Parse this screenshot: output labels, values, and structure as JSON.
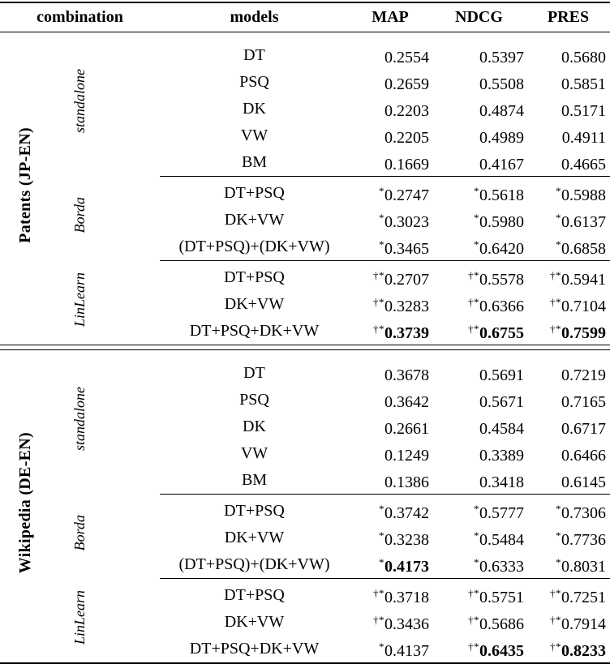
{
  "colors": {
    "text": "#000000",
    "background": "#ffffff"
  },
  "header": {
    "combination": "combination",
    "models": "models",
    "metrics": [
      "MAP",
      "NDCG",
      "PRES"
    ]
  },
  "sections": [
    {
      "label": "Patents (JP-EN)",
      "groups": [
        {
          "label": "standalone",
          "rows": [
            {
              "model": "DT",
              "values": [
                {
                  "p": "",
                  "v": "0.2554",
                  "b": false
                },
                {
                  "p": "",
                  "v": "0.5397",
                  "b": false
                },
                {
                  "p": "",
                  "v": "0.5680",
                  "b": false
                }
              ]
            },
            {
              "model": "PSQ",
              "values": [
                {
                  "p": "",
                  "v": "0.2659",
                  "b": false
                },
                {
                  "p": "",
                  "v": "0.5508",
                  "b": false
                },
                {
                  "p": "",
                  "v": "0.5851",
                  "b": false
                }
              ]
            },
            {
              "model": "DK",
              "values": [
                {
                  "p": "",
                  "v": "0.2203",
                  "b": false
                },
                {
                  "p": "",
                  "v": "0.4874",
                  "b": false
                },
                {
                  "p": "",
                  "v": "0.5171",
                  "b": false
                }
              ]
            },
            {
              "model": "VW",
              "values": [
                {
                  "p": "",
                  "v": "0.2205",
                  "b": false
                },
                {
                  "p": "",
                  "v": "0.4989",
                  "b": false
                },
                {
                  "p": "",
                  "v": "0.4911",
                  "b": false
                }
              ]
            },
            {
              "model": "BM",
              "values": [
                {
                  "p": "",
                  "v": "0.1669",
                  "b": false
                },
                {
                  "p": "",
                  "v": "0.4167",
                  "b": false
                },
                {
                  "p": "",
                  "v": "0.4665",
                  "b": false
                }
              ]
            }
          ]
        },
        {
          "label": "Borda",
          "rows": [
            {
              "model": "DT+PSQ",
              "values": [
                {
                  "p": "*",
                  "v": "0.2747",
                  "b": false
                },
                {
                  "p": "*",
                  "v": "0.5618",
                  "b": false
                },
                {
                  "p": "*",
                  "v": "0.5988",
                  "b": false
                }
              ]
            },
            {
              "model": "DK+VW",
              "values": [
                {
                  "p": "*",
                  "v": "0.3023",
                  "b": false
                },
                {
                  "p": "*",
                  "v": "0.5980",
                  "b": false
                },
                {
                  "p": "*",
                  "v": "0.6137",
                  "b": false
                }
              ]
            },
            {
              "model": "(DT+PSQ)+(DK+VW)",
              "values": [
                {
                  "p": "*",
                  "v": "0.3465",
                  "b": false
                },
                {
                  "p": "*",
                  "v": "0.6420",
                  "b": false
                },
                {
                  "p": "*",
                  "v": "0.6858",
                  "b": false
                }
              ]
            }
          ]
        },
        {
          "label": "LinLearn",
          "rows": [
            {
              "model": "DT+PSQ",
              "values": [
                {
                  "p": "†*",
                  "v": "0.2707",
                  "b": false
                },
                {
                  "p": "†*",
                  "v": "0.5578",
                  "b": false
                },
                {
                  "p": "†*",
                  "v": "0.5941",
                  "b": false
                }
              ]
            },
            {
              "model": "DK+VW",
              "values": [
                {
                  "p": "†*",
                  "v": "0.3283",
                  "b": false
                },
                {
                  "p": "†*",
                  "v": "0.6366",
                  "b": false
                },
                {
                  "p": "†*",
                  "v": "0.7104",
                  "b": false
                }
              ]
            },
            {
              "model": "DT+PSQ+DK+VW",
              "values": [
                {
                  "p": "†*",
                  "v": "0.3739",
                  "b": true
                },
                {
                  "p": "†*",
                  "v": "0.6755",
                  "b": true
                },
                {
                  "p": "†*",
                  "v": "0.7599",
                  "b": true
                }
              ]
            }
          ]
        }
      ]
    },
    {
      "label": "Wikipedia (DE-EN)",
      "groups": [
        {
          "label": "standalone",
          "rows": [
            {
              "model": "DT",
              "values": [
                {
                  "p": "",
                  "v": "0.3678",
                  "b": false
                },
                {
                  "p": "",
                  "v": "0.5691",
                  "b": false
                },
                {
                  "p": "",
                  "v": "0.7219",
                  "b": false
                }
              ]
            },
            {
              "model": "PSQ",
              "values": [
                {
                  "p": "",
                  "v": "0.3642",
                  "b": false
                },
                {
                  "p": "",
                  "v": "0.5671",
                  "b": false
                },
                {
                  "p": "",
                  "v": "0.7165",
                  "b": false
                }
              ]
            },
            {
              "model": "DK",
              "values": [
                {
                  "p": "",
                  "v": "0.2661",
                  "b": false
                },
                {
                  "p": "",
                  "v": "0.4584",
                  "b": false
                },
                {
                  "p": "",
                  "v": "0.6717",
                  "b": false
                }
              ]
            },
            {
              "model": "VW",
              "values": [
                {
                  "p": "",
                  "v": "0.1249",
                  "b": false
                },
                {
                  "p": "",
                  "v": "0.3389",
                  "b": false
                },
                {
                  "p": "",
                  "v": "0.6466",
                  "b": false
                }
              ]
            },
            {
              "model": "BM",
              "values": [
                {
                  "p": "",
                  "v": "0.1386",
                  "b": false
                },
                {
                  "p": "",
                  "v": "0.3418",
                  "b": false
                },
                {
                  "p": "",
                  "v": "0.6145",
                  "b": false
                }
              ]
            }
          ]
        },
        {
          "label": "Borda",
          "rows": [
            {
              "model": "DT+PSQ",
              "values": [
                {
                  "p": "*",
                  "v": "0.3742",
                  "b": false
                },
                {
                  "p": "*",
                  "v": "0.5777",
                  "b": false
                },
                {
                  "p": "*",
                  "v": "0.7306",
                  "b": false
                }
              ]
            },
            {
              "model": "DK+VW",
              "values": [
                {
                  "p": "*",
                  "v": "0.3238",
                  "b": false
                },
                {
                  "p": "*",
                  "v": "0.5484",
                  "b": false
                },
                {
                  "p": "*",
                  "v": "0.7736",
                  "b": false
                }
              ]
            },
            {
              "model": "(DT+PSQ)+(DK+VW)",
              "values": [
                {
                  "p": "*",
                  "v": "0.4173",
                  "b": true
                },
                {
                  "p": "*",
                  "v": "0.6333",
                  "b": false
                },
                {
                  "p": "*",
                  "v": "0.8031",
                  "b": false
                }
              ]
            }
          ]
        },
        {
          "label": "LinLearn",
          "rows": [
            {
              "model": "DT+PSQ",
              "values": [
                {
                  "p": "†*",
                  "v": "0.3718",
                  "b": false
                },
                {
                  "p": "†*",
                  "v": "0.5751",
                  "b": false
                },
                {
                  "p": "†*",
                  "v": "0.7251",
                  "b": false
                }
              ]
            },
            {
              "model": "DK+VW",
              "values": [
                {
                  "p": "†*",
                  "v": "0.3436",
                  "b": false
                },
                {
                  "p": "†*",
                  "v": "0.5686",
                  "b": false
                },
                {
                  "p": "†*",
                  "v": "0.7914",
                  "b": false
                }
              ]
            },
            {
              "model": "DT+PSQ+DK+VW",
              "values": [
                {
                  "p": "*",
                  "v": "0.4137",
                  "b": false
                },
                {
                  "p": "†*",
                  "v": "0.6435",
                  "b": true
                },
                {
                  "p": "†*",
                  "v": "0.8233",
                  "b": true
                }
              ]
            }
          ]
        }
      ]
    }
  ]
}
